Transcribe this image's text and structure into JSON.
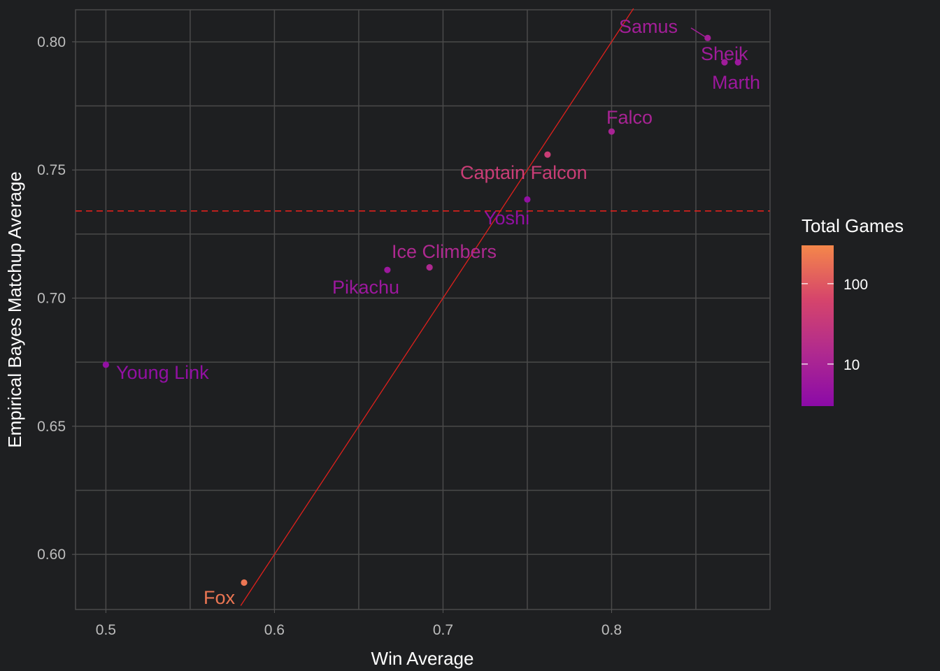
{
  "chart_data": {
    "type": "scatter",
    "xlabel": "Win Average",
    "ylabel": "Empirical Bayes Matchup Average",
    "xlim": [
      0.482,
      0.894
    ],
    "ylim": [
      0.5785,
      0.8125
    ],
    "x_ticks": [
      0.5,
      0.6,
      0.7,
      0.8
    ],
    "x_tick_labels": [
      "0.5",
      "0.6",
      "0.7",
      "0.8"
    ],
    "y_ticks": [
      0.6,
      0.65,
      0.7,
      0.75,
      0.8
    ],
    "y_tick_labels": [
      "0.60",
      "0.65",
      "0.70",
      "0.75",
      "0.80"
    ],
    "grid": true,
    "reference_line": {
      "type": "identity",
      "x": [
        0.58,
        0.813
      ],
      "y": [
        0.58,
        0.813
      ],
      "color": "#e0201c"
    },
    "hline": {
      "y": 0.734,
      "style": "dashed",
      "color": "#e0201c"
    },
    "legend": {
      "title": "Total Games",
      "position": "right",
      "scale": "log",
      "range": [
        3,
        300
      ],
      "ticks": [
        10,
        100
      ],
      "tick_labels": [
        "10",
        "100"
      ],
      "colors": [
        "#8b0aa8",
        "#b02a8f",
        "#d6456b",
        "#f4874a"
      ]
    },
    "points": [
      {
        "label": "Samus",
        "x": 0.857,
        "y": 0.8015,
        "games": 8
      },
      {
        "label": "Sheik",
        "x": 0.867,
        "y": 0.792,
        "games": 7
      },
      {
        "label": "Marth",
        "x": 0.875,
        "y": 0.792,
        "games": 6
      },
      {
        "label": "Falco",
        "x": 0.8,
        "y": 0.765,
        "games": 10
      },
      {
        "label": "Captain Falcon",
        "x": 0.762,
        "y": 0.756,
        "games": 40
      },
      {
        "label": "Yoshi",
        "x": 0.75,
        "y": 0.7385,
        "games": 4
      },
      {
        "label": "Ice Climbers",
        "x": 0.692,
        "y": 0.712,
        "games": 13
      },
      {
        "label": "Pikachu",
        "x": 0.667,
        "y": 0.711,
        "games": 6
      },
      {
        "label": "Young Link",
        "x": 0.5,
        "y": 0.674,
        "games": 4
      },
      {
        "label": "Fox",
        "x": 0.582,
        "y": 0.589,
        "games": 200
      }
    ]
  }
}
